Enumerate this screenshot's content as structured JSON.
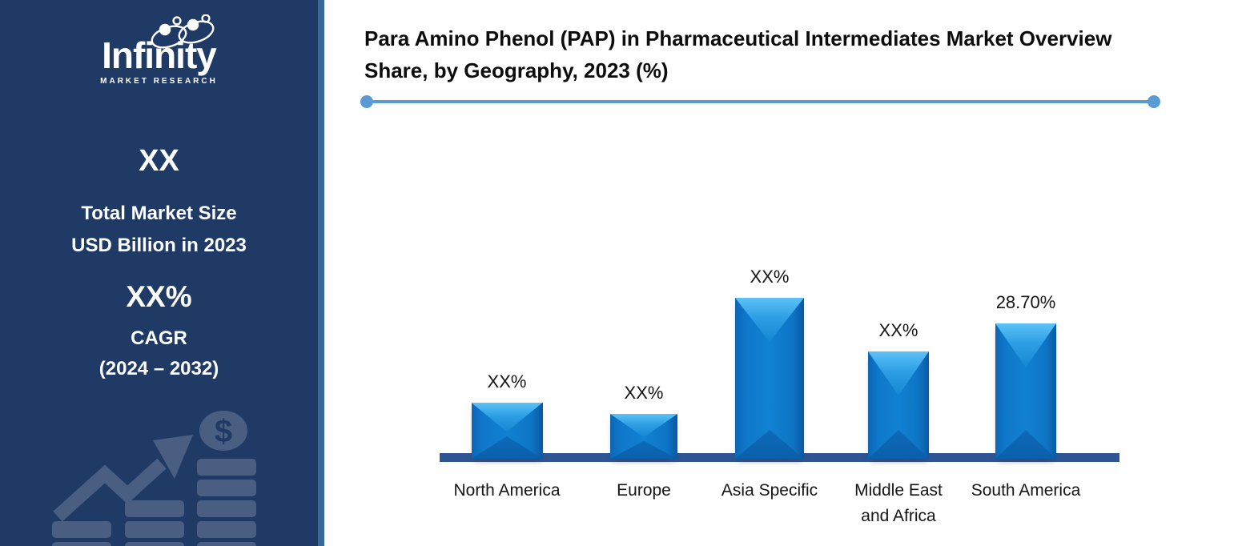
{
  "sidebar": {
    "logo": {
      "brand": "Infinity",
      "tagline": "MARKET RESEARCH"
    },
    "market_size": {
      "value": "XX",
      "line1": "Total Market Size",
      "line2": "USD Billion in 2023"
    },
    "cagr": {
      "value": "XX%",
      "label": "CAGR",
      "range": "(2024 – 2032)"
    },
    "art": {
      "dollar_sign": "$"
    },
    "colors": {
      "background": "#203A66",
      "edge_stripe": "#35689B",
      "graphic": "#4A5E82"
    }
  },
  "header": {
    "title_line1": "Para Amino Phenol (PAP) in Pharmaceutical Intermediates Market Overview",
    "title_line2": "Share, by Geography, 2023 (%)",
    "divider_color": "#5B9BD5"
  },
  "chart_data": {
    "type": "bar",
    "title": "Para Amino Phenol (PAP) in Pharmaceutical Intermediates Market Overview Share, by Geography, 2023 (%)",
    "categories": [
      "North America",
      "Europe",
      "Asia Specific",
      "Middle East and Africa",
      "South America"
    ],
    "display_labels": [
      "XX%",
      "XX%",
      "XX%",
      "XX%",
      "28.70%"
    ],
    "estimated_values_pct": [
      11.9,
      9.5,
      34.1,
      22.8,
      28.7
    ],
    "labeled_value": {
      "category": "South America",
      "value": 28.7
    },
    "xlabel": "",
    "ylabel": "",
    "ylim": [
      0,
      40
    ],
    "grid": false,
    "legend": false,
    "bar_color": "#0E76C8",
    "axis_color": "#2F5496"
  }
}
